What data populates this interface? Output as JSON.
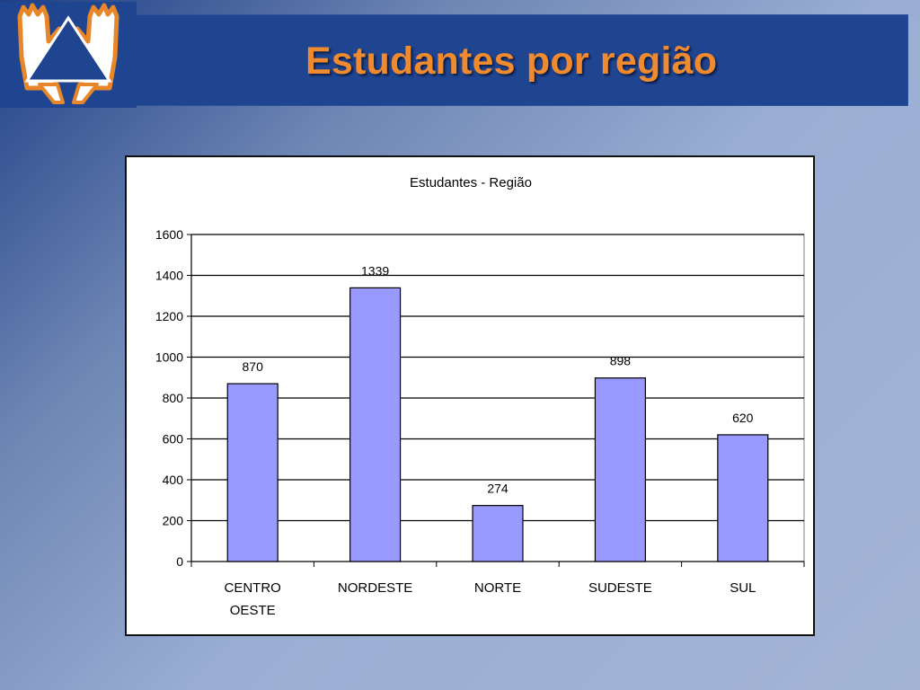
{
  "slide": {
    "title": "Estudantes por região"
  },
  "logo": {
    "icon": "raised-hands-triangle-icon",
    "colors": {
      "hands": "#ffffff",
      "outline": "#e8862a",
      "triangle": "#1f4490"
    }
  },
  "chart_data": {
    "type": "bar",
    "title": "Estudantes - Região",
    "categories": [
      [
        "CENTRO",
        "OESTE"
      ],
      [
        "NORDESTE"
      ],
      [
        "NORTE"
      ],
      [
        "SUDESTE"
      ],
      [
        "SUL"
      ]
    ],
    "values": [
      870,
      1339,
      274,
      898,
      620
    ],
    "data_labels": [
      "870",
      "1339",
      "274",
      "898",
      "620"
    ],
    "yticks": [
      "0",
      "200",
      "400",
      "600",
      "800",
      "1000",
      "1200",
      "1400",
      "1600"
    ],
    "ylim": [
      0,
      1600
    ],
    "grid": true,
    "legend": "none",
    "colors": {
      "bar": "#9999ff",
      "bar_edge": "#000000"
    }
  }
}
